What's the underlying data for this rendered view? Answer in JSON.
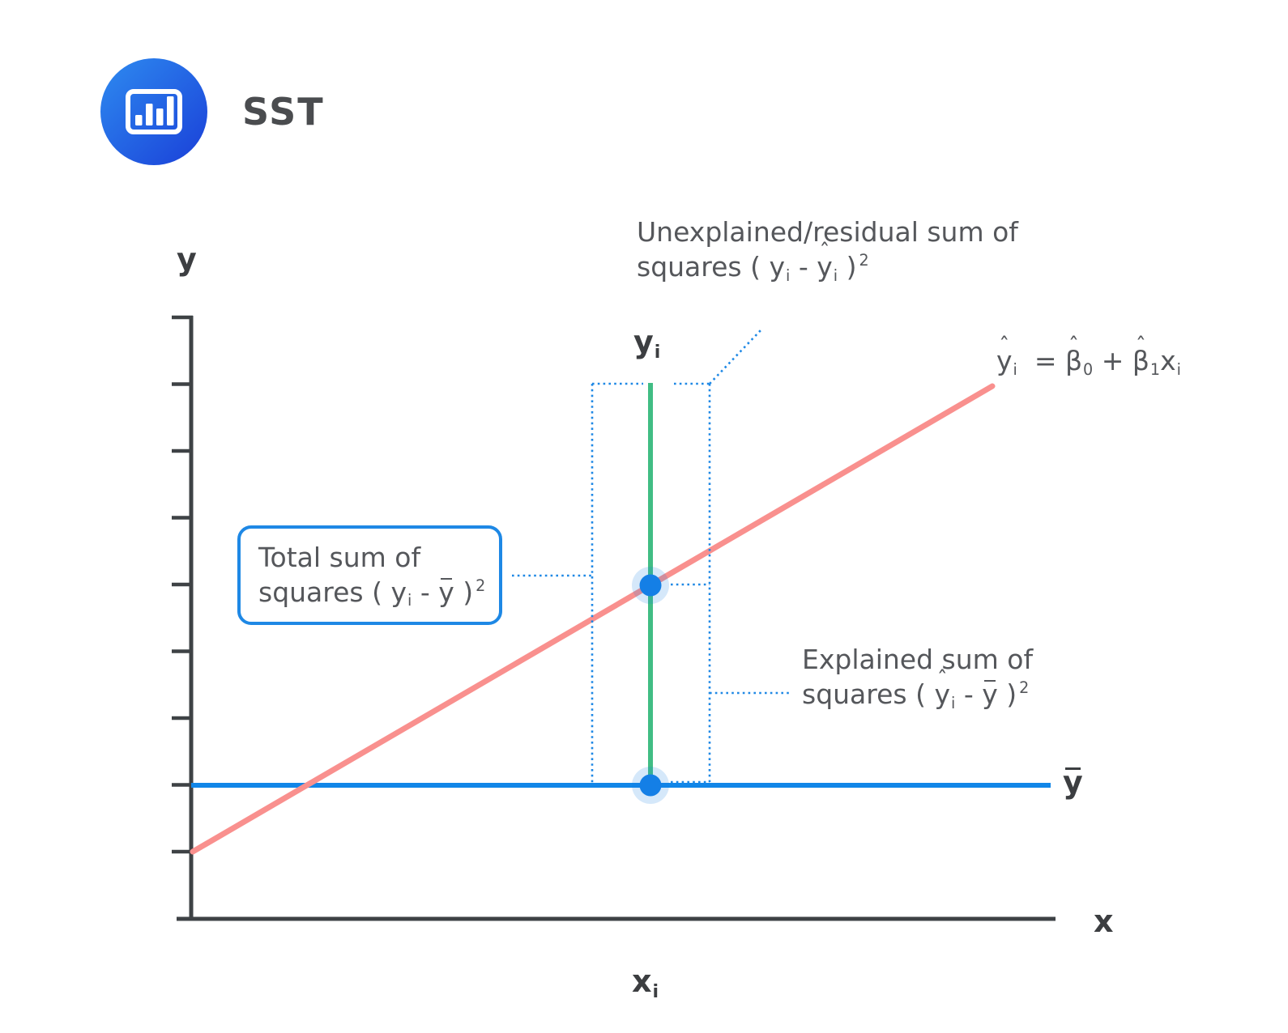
{
  "brand": {
    "title": "SST",
    "icon": "bar-chart-icon"
  },
  "axis": {
    "y": "y",
    "x": "x"
  },
  "points": {
    "yi_html": "y<sub>i</sub>",
    "xi_html": "x<sub>i</sub>",
    "ybar_html": "<span class=\"bar\">y</span>"
  },
  "notes": {
    "unexplained_html": "Unexplained/residual sum of<br>squares ( y<sub>i</sub> - <span class=\"hat\">y</span><sub>i</sub> )<sup>2</sup>",
    "total_html": "Total sum of<br>squares ( y<sub>i</sub> - <span class=\"bar\">y</span> )<sup>2</sup>",
    "explained_html": "Explained sum of<br>squares ( <span class=\"hat\">y</span><sub>i</sub> - <span class=\"bar\">y</span> )<sup>2</sup>",
    "equation_html": "<span class=\"hat\">y</span><sub>i</sub> &nbsp;= <span class=\"hat\">β</span><sub>0</sub> + <span class=\"hat\">β</span><sub>1</sub>x<sub>i</sub>"
  },
  "colors": {
    "axis": "#3e4245",
    "regression": "#f9908e",
    "mean": "#1186e8",
    "residual": "#41bd84",
    "point": "#147fe6",
    "dotted": "#1e88e5",
    "box_border": "#1e88e5",
    "text": "#55575b",
    "heading": "#4a4c4f",
    "label_dark": "#3c3e41",
    "icon_grad_start": "#2e8bf0",
    "icon_grad_end": "#1a3fd8"
  }
}
